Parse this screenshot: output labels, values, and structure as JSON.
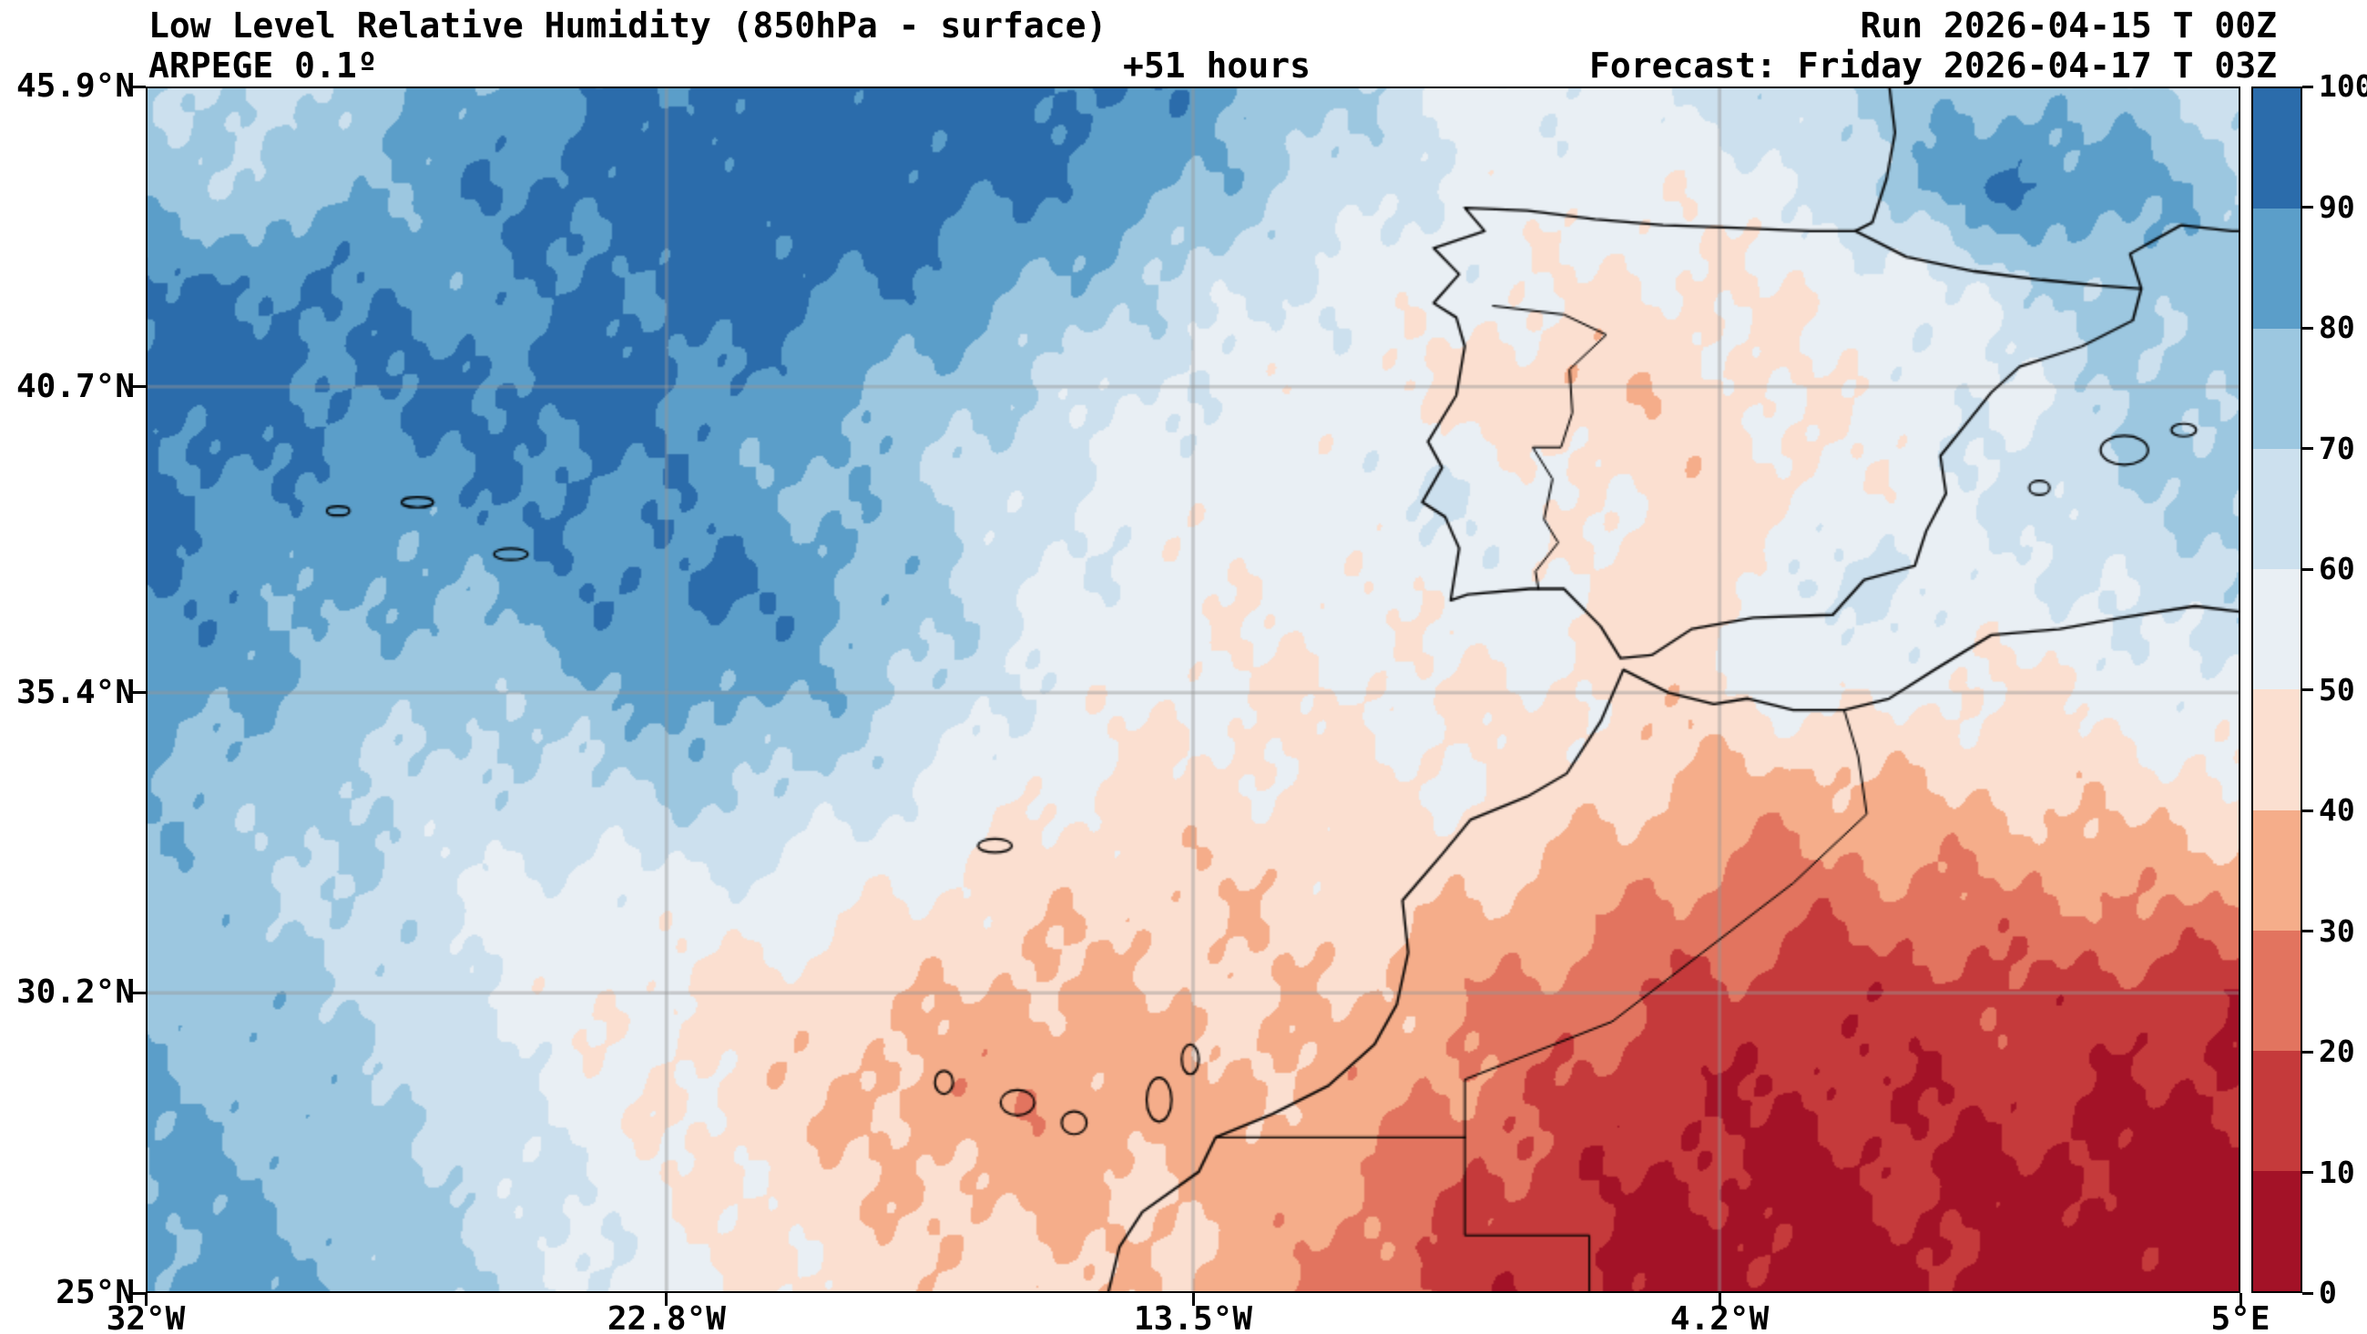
{
  "header": {
    "title": "Low Level Relative Humidity (850hPa - surface)",
    "model": "ARPEGE 0.1º",
    "lead_time": "+51 hours",
    "run": "Run 2026-04-15 T 00Z",
    "forecast": "Forecast: Friday 2026-04-17 T 03Z"
  },
  "axes": {
    "lat_ticks": [
      {
        "label": "45.9°N",
        "lat": 45.9
      },
      {
        "label": "40.7°N",
        "lat": 40.7
      },
      {
        "label": "35.4°N",
        "lat": 35.4
      },
      {
        "label": "30.2°N",
        "lat": 30.2
      },
      {
        "label": "25°N",
        "lat": 25.0
      }
    ],
    "lon_ticks": [
      {
        "label": "32°W",
        "lon": -32.0
      },
      {
        "label": "22.8°W",
        "lon": -22.8
      },
      {
        "label": "13.5°W",
        "lon": -13.5
      },
      {
        "label": "4.2°W",
        "lon": -4.2
      },
      {
        "label": "5°E",
        "lon": 5.0
      }
    ],
    "grid_on": true
  },
  "colorbar": {
    "position": "right",
    "min": 0,
    "max": 100,
    "tick_labels": [
      "100",
      "90",
      "80",
      "70",
      "60",
      "50",
      "40",
      "30",
      "20",
      "10",
      "0"
    ]
  },
  "chart_data": {
    "type": "heatmap",
    "title": "Low Level Relative Humidity (850hPa - surface)",
    "units": "%",
    "lon_range": [
      -32.0,
      5.0
    ],
    "lat_range": [
      25.0,
      45.9
    ],
    "levels": [
      0,
      10,
      20,
      30,
      40,
      50,
      60,
      70,
      80,
      90,
      100
    ],
    "level_colors": [
      "#a31227",
      "#c53a3b",
      "#e2745f",
      "#f5ad8a",
      "#fbdfd0",
      "#e9eff4",
      "#cce0ee",
      "#9cc7e0",
      "#5b9ec9",
      "#2b6cab"
    ],
    "grid_lons": [
      -32.0,
      -30.05,
      -28.11,
      -26.16,
      -24.21,
      -22.26,
      -20.32,
      -18.37,
      -16.42,
      -14.47,
      -12.53,
      -10.58,
      -8.63,
      -6.68,
      -4.74,
      -2.79,
      -0.84,
      1.11,
      3.05,
      5.0
    ],
    "grid_lats": [
      45.9,
      44.16,
      42.42,
      40.67,
      38.93,
      37.19,
      35.44,
      33.7,
      31.96,
      30.22,
      28.47,
      26.73,
      25.0
    ],
    "values": [
      [
        72,
        65,
        75,
        82,
        88,
        92,
        95,
        95,
        95,
        90,
        82,
        70,
        58,
        56,
        62,
        68,
        74,
        78,
        72,
        66
      ],
      [
        78,
        70,
        80,
        88,
        94,
        96,
        97,
        95,
        90,
        84,
        74,
        64,
        57,
        54,
        53,
        58,
        78,
        92,
        84,
        72
      ],
      [
        90,
        92,
        88,
        85,
        90,
        94,
        92,
        88,
        80,
        72,
        62,
        57,
        54,
        50,
        48,
        52,
        56,
        66,
        76,
        72
      ],
      [
        95,
        94,
        90,
        92,
        94,
        90,
        85,
        78,
        68,
        60,
        55,
        53,
        46,
        40,
        45,
        50,
        55,
        60,
        70,
        75
      ],
      [
        92,
        88,
        85,
        88,
        91,
        85,
        80,
        72,
        62,
        56,
        53,
        58,
        60,
        50,
        45,
        48,
        55,
        62,
        70,
        72
      ],
      [
        90,
        85,
        80,
        82,
        88,
        92,
        87,
        75,
        62,
        55,
        52,
        52,
        55,
        52,
        42,
        62,
        60,
        56,
        62,
        68
      ],
      [
        87,
        80,
        75,
        72,
        78,
        85,
        80,
        70,
        58,
        52,
        50,
        50,
        50,
        48,
        45,
        56,
        52,
        48,
        55,
        60
      ],
      [
        80,
        75,
        70,
        65,
        68,
        72,
        68,
        60,
        52,
        48,
        47,
        48,
        50,
        45,
        38,
        34,
        40,
        42,
        45,
        48
      ],
      [
        76,
        72,
        68,
        60,
        55,
        58,
        55,
        50,
        45,
        42,
        42,
        45,
        42,
        35,
        28,
        25,
        28,
        30,
        32,
        35
      ],
      [
        78,
        75,
        70,
        60,
        52,
        48,
        45,
        42,
        38,
        40,
        42,
        40,
        32,
        25,
        18,
        15,
        15,
        18,
        15,
        12
      ],
      [
        80,
        78,
        72,
        65,
        55,
        48,
        42,
        35,
        32,
        35,
        38,
        35,
        28,
        18,
        12,
        10,
        12,
        12,
        10,
        8
      ],
      [
        82,
        80,
        75,
        68,
        58,
        50,
        45,
        40,
        38,
        40,
        38,
        30,
        20,
        12,
        8,
        8,
        10,
        8,
        6,
        5
      ],
      [
        85,
        82,
        78,
        70,
        60,
        52,
        48,
        45,
        42,
        42,
        35,
        25,
        15,
        10,
        6,
        5,
        8,
        6,
        5,
        4
      ]
    ]
  },
  "map_overlays": {
    "coastlines": [
      [
        [
          -8.7,
          43.8
        ],
        [
          -7.6,
          43.75
        ],
        [
          -6.4,
          43.6
        ],
        [
          -5.2,
          43.5
        ],
        [
          -3.9,
          43.45
        ],
        [
          -2.6,
          43.4
        ],
        [
          -1.8,
          43.4
        ],
        [
          -0.9,
          42.95
        ],
        [
          0.3,
          42.7
        ],
        [
          1.5,
          42.55
        ],
        [
          2.5,
          42.45
        ],
        [
          3.25,
          42.4
        ],
        [
          3.1,
          41.85
        ],
        [
          2.2,
          41.4
        ],
        [
          1.1,
          41.05
        ],
        [
          0.6,
          40.6
        ],
        [
          0.15,
          40.05
        ],
        [
          -0.3,
          39.5
        ],
        [
          -0.2,
          38.85
        ],
        [
          -0.55,
          38.2
        ],
        [
          -0.75,
          37.6
        ],
        [
          -1.65,
          37.35
        ],
        [
          -2.2,
          36.75
        ],
        [
          -3.6,
          36.7
        ],
        [
          -4.7,
          36.5
        ],
        [
          -5.4,
          36.05
        ],
        [
          -5.95,
          36.0
        ],
        [
          -6.3,
          36.55
        ],
        [
          -6.95,
          37.2
        ],
        [
          -7.55,
          37.2
        ],
        [
          -8.65,
          37.1
        ],
        [
          -8.95,
          37.0
        ],
        [
          -8.8,
          37.9
        ],
        [
          -9.05,
          38.45
        ],
        [
          -9.45,
          38.7
        ],
        [
          -9.1,
          39.3
        ],
        [
          -9.35,
          39.75
        ],
        [
          -8.85,
          40.55
        ],
        [
          -8.7,
          41.4
        ],
        [
          -8.85,
          41.9
        ],
        [
          -9.25,
          42.15
        ],
        [
          -8.8,
          42.65
        ],
        [
          -9.25,
          43.1
        ],
        [
          -8.35,
          43.4
        ],
        [
          -8.7,
          43.8
        ]
      ],
      [
        [
          -1.2,
          45.9
        ],
        [
          -1.1,
          45.1
        ],
        [
          -1.25,
          44.3
        ],
        [
          -1.5,
          43.55
        ],
        [
          -1.8,
          43.4
        ]
      ],
      [
        [
          3.25,
          42.4
        ],
        [
          3.05,
          43.0
        ],
        [
          3.95,
          43.5
        ],
        [
          4.85,
          43.4
        ],
        [
          5.0,
          43.4
        ]
      ],
      [
        [
          5.0,
          36.8
        ],
        [
          4.2,
          36.9
        ],
        [
          2.9,
          36.7
        ],
        [
          1.8,
          36.5
        ],
        [
          0.6,
          36.4
        ],
        [
          -0.4,
          35.8
        ],
        [
          -1.2,
          35.3
        ],
        [
          -2.0,
          35.1
        ],
        [
          -2.9,
          35.1
        ],
        [
          -3.7,
          35.3
        ],
        [
          -4.3,
          35.2
        ],
        [
          -5.1,
          35.4
        ],
        [
          -5.9,
          35.8
        ],
        [
          -6.3,
          34.9
        ],
        [
          -6.9,
          34.0
        ],
        [
          -7.6,
          33.6
        ],
        [
          -8.6,
          33.2
        ],
        [
          -9.1,
          32.6
        ],
        [
          -9.8,
          31.8
        ],
        [
          -9.7,
          30.9
        ],
        [
          -9.9,
          30.0
        ],
        [
          -10.3,
          29.3
        ],
        [
          -11.1,
          28.6
        ],
        [
          -12.1,
          28.1
        ],
        [
          -13.1,
          27.7
        ],
        [
          -13.4,
          27.1
        ],
        [
          -14.4,
          26.4
        ],
        [
          -14.8,
          25.8
        ],
        [
          -15.0,
          25.0
        ]
      ]
    ],
    "borders": [
      [
        [
          -8.2,
          42.1
        ],
        [
          -6.95,
          41.95
        ],
        [
          -6.2,
          41.6
        ],
        [
          -6.85,
          41.0
        ],
        [
          -6.8,
          40.25
        ],
        [
          -7.0,
          39.65
        ],
        [
          -7.5,
          39.65
        ],
        [
          -7.15,
          39.1
        ],
        [
          -7.3,
          38.4
        ],
        [
          -7.05,
          38.0
        ],
        [
          -7.45,
          37.5
        ],
        [
          -7.4,
          37.2
        ]
      ],
      [
        [
          -2.0,
          35.1
        ],
        [
          -1.75,
          34.3
        ],
        [
          -1.6,
          33.3
        ],
        [
          -2.9,
          32.1
        ],
        [
          -4.5,
          30.9
        ],
        [
          -6.1,
          29.7
        ],
        [
          -8.7,
          28.7
        ],
        [
          -8.7,
          27.7
        ]
      ],
      [
        [
          -13.1,
          27.7
        ],
        [
          -8.7,
          27.7
        ]
      ],
      [
        [
          -8.7,
          27.7
        ],
        [
          -8.7,
          26.0
        ],
        [
          -6.5,
          26.0
        ],
        [
          -6.5,
          25.0
        ]
      ]
    ],
    "islands": [
      [
        -17.9,
        28.65,
        0.16,
        0.2
      ],
      [
        -16.6,
        28.3,
        0.3,
        0.22
      ],
      [
        -15.6,
        27.95,
        0.22,
        0.2
      ],
      [
        -14.1,
        28.35,
        0.22,
        0.38
      ],
      [
        -13.55,
        29.05,
        0.15,
        0.26
      ],
      [
        -17.0,
        32.75,
        0.3,
        0.12
      ],
      [
        -28.6,
        38.55,
        0.2,
        0.08
      ],
      [
        -27.2,
        38.7,
        0.28,
        0.09
      ],
      [
        -25.55,
        37.8,
        0.3,
        0.1
      ],
      [
        1.45,
        38.95,
        0.18,
        0.12
      ],
      [
        2.95,
        39.6,
        0.42,
        0.25
      ],
      [
        4.0,
        39.95,
        0.22,
        0.11
      ]
    ]
  }
}
